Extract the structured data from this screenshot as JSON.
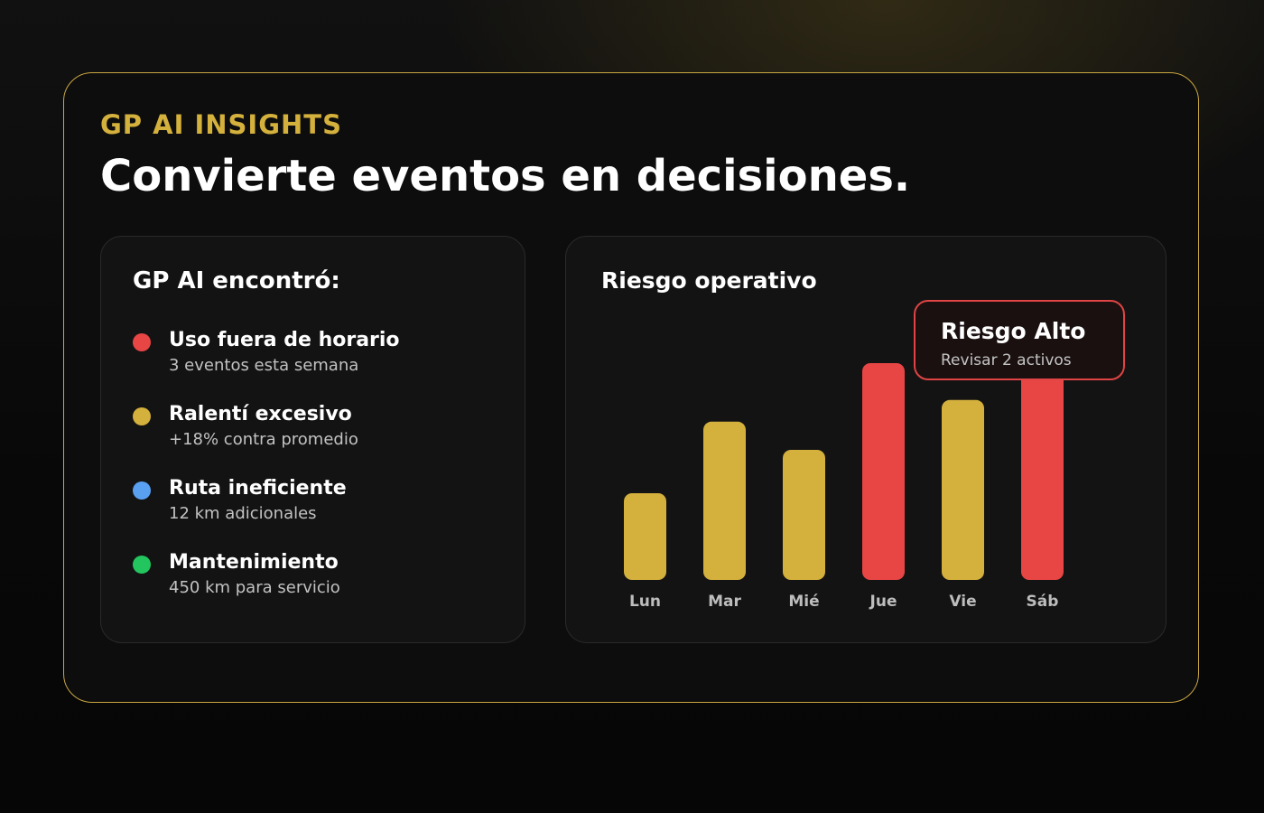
{
  "header": {
    "eyebrow": "GP AI INSIGHTS",
    "headline": "Convierte eventos en decisiones."
  },
  "insights_panel": {
    "title": "GP AI encontró:",
    "items": [
      {
        "title": "Uso fuera de horario",
        "subtitle": "3 eventos esta semana",
        "color": "#e84545"
      },
      {
        "title": "Ralentí excesivo",
        "subtitle": "+18% contra promedio",
        "color": "#d4b03c"
      },
      {
        "title": "Ruta ineficiente",
        "subtitle": "12 km adicionales",
        "color": "#5aa0f0"
      },
      {
        "title": "Mantenimiento",
        "subtitle": "450 km para servicio",
        "color": "#22c55e"
      }
    ]
  },
  "risk_panel": {
    "title": "Riesgo operativo",
    "tooltip": {
      "title": "Riesgo Alto",
      "subtitle": "Revisar 2 activos"
    }
  },
  "chart_data": {
    "type": "bar",
    "title": "Riesgo operativo",
    "categories": [
      "Lun",
      "Mar",
      "Mié",
      "Jue",
      "Vie",
      "Sáb"
    ],
    "values": [
      40,
      73,
      60,
      100,
      83,
      100
    ],
    "levels": [
      "medium",
      "medium",
      "medium",
      "high",
      "medium",
      "high"
    ],
    "ylim": [
      0,
      100
    ],
    "grid": false,
    "colors": {
      "medium": "#d4b03c",
      "high": "#e84545",
      "label": "#bdbdbd"
    }
  }
}
